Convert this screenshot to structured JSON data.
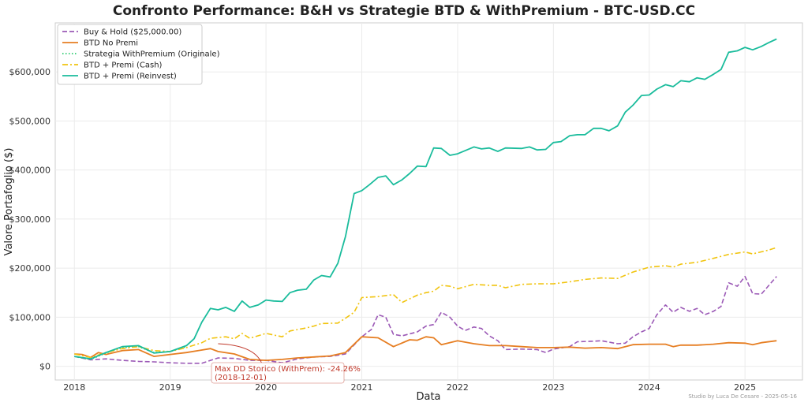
{
  "chart_data": {
    "type": "line",
    "title": "Confronto Performance: B&H vs Strategie BTD & WithPremium - BTC-USD.CC",
    "xlabel": "Data",
    "ylabel": "Valore Portafoglio ($)",
    "xlim": [
      2017.8,
      2025.6
    ],
    "ylim": [
      -28000,
      700000
    ],
    "x_ticks": [
      {
        "label": "2018",
        "value": 2018
      },
      {
        "label": "2019",
        "value": 2019
      },
      {
        "label": "2020",
        "value": 2020
      },
      {
        "label": "2021",
        "value": 2021
      },
      {
        "label": "2022",
        "value": 2022
      },
      {
        "label": "2023",
        "value": 2023
      },
      {
        "label": "2024",
        "value": 2024
      },
      {
        "label": "2025",
        "value": 2025
      }
    ],
    "y_ticks": [
      {
        "label": "$0",
        "value": 0
      },
      {
        "label": "$100,000",
        "value": 100000
      },
      {
        "label": "$200,000",
        "value": 200000
      },
      {
        "label": "$300,000",
        "value": 300000
      },
      {
        "label": "$400,000",
        "value": 400000
      },
      {
        "label": "$500,000",
        "value": 500000
      },
      {
        "label": "$600,000",
        "value": 600000
      }
    ],
    "grid": true,
    "legend_position": "top-left",
    "series": [
      {
        "name": "Buy & Hold ($25,000.00)",
        "color": "#9b59b6",
        "dash": "dashed",
        "points": [
          [
            2018.0,
            20000
          ],
          [
            2018.17,
            13000
          ],
          [
            2018.33,
            15000
          ],
          [
            2018.5,
            12000
          ],
          [
            2018.67,
            10000
          ],
          [
            2018.83,
            9000
          ],
          [
            2019.0,
            7000
          ],
          [
            2019.17,
            6000
          ],
          [
            2019.33,
            6000
          ],
          [
            2019.5,
            17000
          ],
          [
            2019.67,
            16000
          ],
          [
            2019.83,
            12000
          ],
          [
            2020.0,
            12000
          ],
          [
            2020.17,
            7000
          ],
          [
            2020.33,
            15000
          ],
          [
            2020.5,
            19000
          ],
          [
            2020.67,
            20000
          ],
          [
            2020.83,
            25000
          ],
          [
            2021.0,
            60000
          ],
          [
            2021.1,
            75000
          ],
          [
            2021.17,
            105000
          ],
          [
            2021.25,
            100000
          ],
          [
            2021.33,
            65000
          ],
          [
            2021.42,
            62000
          ],
          [
            2021.58,
            70000
          ],
          [
            2021.67,
            82000
          ],
          [
            2021.75,
            85000
          ],
          [
            2021.83,
            110000
          ],
          [
            2021.92,
            100000
          ],
          [
            2022.0,
            82000
          ],
          [
            2022.08,
            73000
          ],
          [
            2022.17,
            80000
          ],
          [
            2022.25,
            77000
          ],
          [
            2022.33,
            62000
          ],
          [
            2022.42,
            52000
          ],
          [
            2022.5,
            34000
          ],
          [
            2022.67,
            35000
          ],
          [
            2022.83,
            34000
          ],
          [
            2022.92,
            28000
          ],
          [
            2023.0,
            35000
          ],
          [
            2023.17,
            40000
          ],
          [
            2023.25,
            50000
          ],
          [
            2023.42,
            51000
          ],
          [
            2023.5,
            52000
          ],
          [
            2023.67,
            46000
          ],
          [
            2023.75,
            47000
          ],
          [
            2023.83,
            60000
          ],
          [
            2023.92,
            70000
          ],
          [
            2024.0,
            77000
          ],
          [
            2024.08,
            105000
          ],
          [
            2024.17,
            125000
          ],
          [
            2024.25,
            110000
          ],
          [
            2024.33,
            120000
          ],
          [
            2024.42,
            112000
          ],
          [
            2024.5,
            118000
          ],
          [
            2024.58,
            105000
          ],
          [
            2024.67,
            112000
          ],
          [
            2024.75,
            122000
          ],
          [
            2024.83,
            170000
          ],
          [
            2024.92,
            163000
          ],
          [
            2025.0,
            183000
          ],
          [
            2025.08,
            148000
          ],
          [
            2025.17,
            147000
          ],
          [
            2025.25,
            165000
          ],
          [
            2025.33,
            183000
          ]
        ]
      },
      {
        "name": "BTD No Premi",
        "color": "#e67e22",
        "dash": "solid",
        "points": [
          [
            2018.0,
            25000
          ],
          [
            2018.08,
            24000
          ],
          [
            2018.17,
            18000
          ],
          [
            2018.25,
            28000
          ],
          [
            2018.33,
            24000
          ],
          [
            2018.5,
            32000
          ],
          [
            2018.67,
            34000
          ],
          [
            2018.83,
            20000
          ],
          [
            2019.0,
            24000
          ],
          [
            2019.17,
            28000
          ],
          [
            2019.33,
            33000
          ],
          [
            2019.42,
            36000
          ],
          [
            2019.5,
            30000
          ],
          [
            2019.67,
            25000
          ],
          [
            2019.83,
            14000
          ],
          [
            2020.0,
            12000
          ],
          [
            2020.17,
            14000
          ],
          [
            2020.33,
            17000
          ],
          [
            2020.5,
            19000
          ],
          [
            2020.67,
            21000
          ],
          [
            2020.83,
            28000
          ],
          [
            2021.0,
            60000
          ],
          [
            2021.17,
            58000
          ],
          [
            2021.33,
            40000
          ],
          [
            2021.5,
            54000
          ],
          [
            2021.58,
            53000
          ],
          [
            2021.67,
            60000
          ],
          [
            2021.75,
            58000
          ],
          [
            2021.83,
            44000
          ],
          [
            2022.0,
            52000
          ],
          [
            2022.17,
            46000
          ],
          [
            2022.33,
            42000
          ],
          [
            2022.5,
            42000
          ],
          [
            2022.67,
            40000
          ],
          [
            2022.83,
            38000
          ],
          [
            2023.0,
            38000
          ],
          [
            2023.17,
            39000
          ],
          [
            2023.33,
            37000
          ],
          [
            2023.5,
            38000
          ],
          [
            2023.67,
            36000
          ],
          [
            2023.83,
            44000
          ],
          [
            2024.0,
            45000
          ],
          [
            2024.17,
            45000
          ],
          [
            2024.25,
            40000
          ],
          [
            2024.33,
            43000
          ],
          [
            2024.5,
            43000
          ],
          [
            2024.67,
            45000
          ],
          [
            2024.83,
            48000
          ],
          [
            2025.0,
            47000
          ],
          [
            2025.08,
            44000
          ],
          [
            2025.17,
            48000
          ],
          [
            2025.33,
            52000
          ]
        ]
      },
      {
        "name": "Strategia WithPremium (Originale)",
        "color": "#2ecc71",
        "dash": "dotted",
        "points": [
          [
            2018.0,
            20000
          ],
          [
            2018.17,
            14000
          ],
          [
            2018.33,
            27000
          ],
          [
            2018.5,
            38000
          ],
          [
            2018.67,
            40000
          ],
          [
            2018.83,
            28000
          ],
          [
            2019.0,
            30000
          ],
          [
            2019.17,
            40000
          ]
        ]
      },
      {
        "name": "BTD + Premi (Cash)",
        "color": "#f1c40f",
        "dash": "dashdot",
        "points": [
          [
            2018.0,
            25000
          ],
          [
            2018.17,
            18000
          ],
          [
            2018.33,
            28000
          ],
          [
            2018.5,
            36000
          ],
          [
            2018.67,
            40000
          ],
          [
            2018.83,
            32000
          ],
          [
            2019.0,
            30000
          ],
          [
            2019.17,
            38000
          ],
          [
            2019.33,
            48000
          ],
          [
            2019.42,
            57000
          ],
          [
            2019.58,
            60000
          ],
          [
            2019.67,
            56000
          ],
          [
            2019.75,
            67000
          ],
          [
            2019.83,
            57000
          ],
          [
            2020.0,
            67000
          ],
          [
            2020.17,
            60000
          ],
          [
            2020.25,
            72000
          ],
          [
            2020.42,
            78000
          ],
          [
            2020.5,
            82000
          ],
          [
            2020.58,
            87000
          ],
          [
            2020.75,
            88000
          ],
          [
            2020.83,
            98000
          ],
          [
            2020.92,
            110000
          ],
          [
            2021.0,
            140000
          ],
          [
            2021.17,
            142000
          ],
          [
            2021.33,
            146000
          ],
          [
            2021.42,
            130000
          ],
          [
            2021.58,
            145000
          ],
          [
            2021.67,
            150000
          ],
          [
            2021.75,
            153000
          ],
          [
            2021.83,
            165000
          ],
          [
            2021.92,
            163000
          ],
          [
            2022.0,
            158000
          ],
          [
            2022.17,
            167000
          ],
          [
            2022.33,
            165000
          ],
          [
            2022.42,
            165000
          ],
          [
            2022.5,
            160000
          ],
          [
            2022.67,
            167000
          ],
          [
            2022.83,
            168000
          ],
          [
            2023.0,
            168000
          ],
          [
            2023.17,
            172000
          ],
          [
            2023.33,
            177000
          ],
          [
            2023.5,
            180000
          ],
          [
            2023.67,
            179000
          ],
          [
            2023.83,
            192000
          ],
          [
            2024.0,
            202000
          ],
          [
            2024.17,
            205000
          ],
          [
            2024.25,
            202000
          ],
          [
            2024.33,
            208000
          ],
          [
            2024.5,
            212000
          ],
          [
            2024.67,
            220000
          ],
          [
            2024.83,
            228000
          ],
          [
            2025.0,
            233000
          ],
          [
            2025.08,
            229000
          ],
          [
            2025.25,
            237000
          ],
          [
            2025.33,
            242000
          ]
        ]
      },
      {
        "name": "BTD + Premi (Reinvest)",
        "color": "#1abc9c",
        "dash": "solid",
        "points": [
          [
            2018.0,
            20000
          ],
          [
            2018.17,
            15000
          ],
          [
            2018.33,
            28000
          ],
          [
            2018.5,
            40000
          ],
          [
            2018.67,
            42000
          ],
          [
            2018.83,
            27000
          ],
          [
            2019.0,
            30000
          ],
          [
            2019.17,
            42000
          ],
          [
            2019.25,
            56000
          ],
          [
            2019.33,
            90000
          ],
          [
            2019.42,
            118000
          ],
          [
            2019.5,
            115000
          ],
          [
            2019.58,
            120000
          ],
          [
            2019.67,
            112000
          ],
          [
            2019.75,
            133000
          ],
          [
            2019.83,
            120000
          ],
          [
            2019.92,
            125000
          ],
          [
            2020.0,
            135000
          ],
          [
            2020.08,
            133000
          ],
          [
            2020.17,
            132000
          ],
          [
            2020.25,
            150000
          ],
          [
            2020.33,
            155000
          ],
          [
            2020.42,
            157000
          ],
          [
            2020.5,
            176000
          ],
          [
            2020.58,
            185000
          ],
          [
            2020.67,
            182000
          ],
          [
            2020.75,
            210000
          ],
          [
            2020.83,
            265000
          ],
          [
            2020.92,
            352000
          ],
          [
            2021.0,
            358000
          ],
          [
            2021.08,
            370000
          ],
          [
            2021.17,
            385000
          ],
          [
            2021.25,
            388000
          ],
          [
            2021.33,
            370000
          ],
          [
            2021.42,
            380000
          ],
          [
            2021.5,
            393000
          ],
          [
            2021.58,
            408000
          ],
          [
            2021.67,
            407000
          ],
          [
            2021.75,
            445000
          ],
          [
            2021.83,
            444000
          ],
          [
            2021.92,
            430000
          ],
          [
            2022.0,
            433000
          ],
          [
            2022.17,
            447000
          ],
          [
            2022.25,
            443000
          ],
          [
            2022.33,
            445000
          ],
          [
            2022.42,
            438000
          ],
          [
            2022.5,
            445000
          ],
          [
            2022.67,
            444000
          ],
          [
            2022.75,
            447000
          ],
          [
            2022.83,
            441000
          ],
          [
            2022.92,
            442000
          ],
          [
            2023.0,
            456000
          ],
          [
            2023.08,
            458000
          ],
          [
            2023.17,
            470000
          ],
          [
            2023.25,
            472000
          ],
          [
            2023.33,
            472000
          ],
          [
            2023.42,
            485000
          ],
          [
            2023.5,
            485000
          ],
          [
            2023.58,
            480000
          ],
          [
            2023.67,
            490000
          ],
          [
            2023.75,
            518000
          ],
          [
            2023.83,
            532000
          ],
          [
            2023.92,
            552000
          ],
          [
            2024.0,
            553000
          ],
          [
            2024.08,
            565000
          ],
          [
            2024.17,
            574000
          ],
          [
            2024.25,
            570000
          ],
          [
            2024.33,
            582000
          ],
          [
            2024.42,
            580000
          ],
          [
            2024.5,
            588000
          ],
          [
            2024.58,
            585000
          ],
          [
            2024.67,
            595000
          ],
          [
            2024.75,
            605000
          ],
          [
            2024.83,
            640000
          ],
          [
            2024.92,
            643000
          ],
          [
            2025.0,
            650000
          ],
          [
            2025.08,
            645000
          ],
          [
            2025.17,
            652000
          ],
          [
            2025.25,
            660000
          ],
          [
            2025.33,
            667000
          ]
        ]
      }
    ],
    "annotation": {
      "text": "Max DD Storico (WithPrem): -24.26%",
      "date": "(2018-12-01)",
      "color": "#c0392b",
      "arrow_to": [
        2019.5,
        46000
      ]
    },
    "credit": "Studio by Luca De Cesare - 2025-05-16"
  }
}
